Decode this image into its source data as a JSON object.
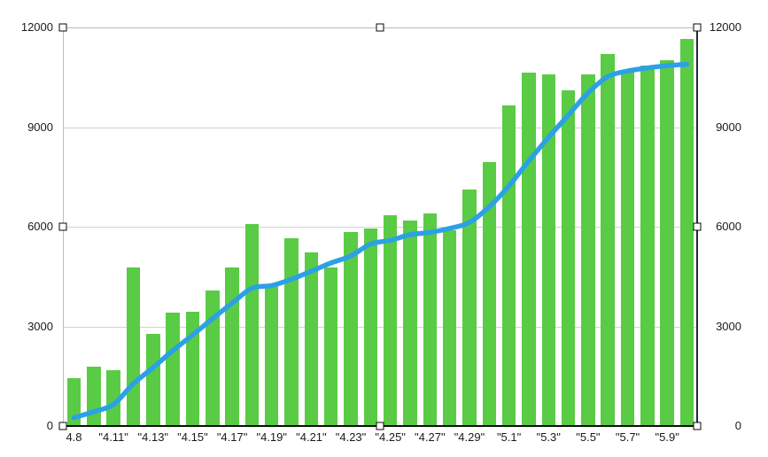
{
  "chart_data": {
    "type": "bar",
    "title": "",
    "xlabel": "",
    "ylabel": "",
    "ylim": [
      0,
      12000
    ],
    "yticks": [
      "12000",
      "9000",
      "6000",
      "3000",
      "0"
    ],
    "grid": true,
    "legend": "none",
    "x_tick_labels": [
      "4.8",
      "\"4.11\"",
      "\"4.13\"",
      "\"4.15\"",
      "\"4.17\"",
      "\"4.19\"",
      "\"4.21\"",
      "\"4.23\"",
      "\"4.25\"",
      "\"4.27\"",
      "\"4.29\"",
      "\"5.1\"",
      "\"5.3\"",
      "\"5.5\"",
      "\"5.7\"",
      "\"5.9\"",
      "x tick shown under every second bar starting with the first"
    ],
    "series": [
      {
        "name": "daily-bars",
        "type": "bar",
        "color": "#5acb44",
        "values": [
          1450,
          1800,
          1690,
          4780,
          2780,
          3420,
          3450,
          4090,
          4780,
          6080,
          4250,
          5650,
          5230,
          4780,
          5840,
          5960,
          6350,
          6200,
          6400,
          5900,
          7120,
          7950,
          9650,
          10650,
          10600,
          10110,
          10590,
          11210,
          10700,
          10850,
          11010,
          11650
        ]
      },
      {
        "name": "trend-line",
        "type": "line",
        "color": "#2ba1e5",
        "values": [
          250,
          430,
          650,
          1270,
          1760,
          2270,
          2740,
          3230,
          3700,
          4150,
          4230,
          4420,
          4660,
          4910,
          5120,
          5480,
          5590,
          5760,
          5830,
          5950,
          6130,
          6600,
          7230,
          7980,
          8690,
          9360,
          10030,
          10520,
          10690,
          10780,
          10850,
          10890
        ]
      }
    ]
  },
  "axes": {
    "left_labels": [
      "12000",
      "9000",
      "6000",
      "3000",
      "0"
    ],
    "right_labels": [
      "12000",
      "9000",
      "6000",
      "3000",
      "0"
    ]
  },
  "selection": {
    "handle_count": 8,
    "handle_fill": "#ffffff",
    "handle_border": "#0a0a0a"
  },
  "colors": {
    "bar": "#5acb44",
    "line": "#2ba1e5",
    "gridline": "#d2d2d2",
    "border_light": "#a9c3cf",
    "border_dark": "#1c2b38",
    "axis_bottom": "#0d0d0d",
    "text": "#1a1a1a",
    "background": "#ffffff"
  }
}
